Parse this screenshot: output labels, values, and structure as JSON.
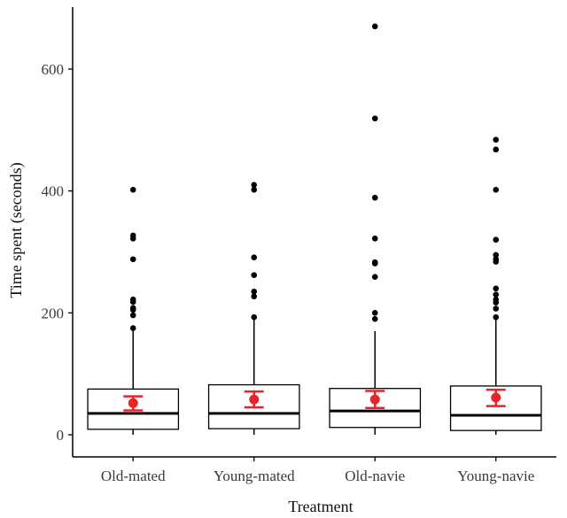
{
  "chart_data": {
    "type": "boxplot",
    "title": "",
    "xlabel": "Treatment",
    "ylabel": "Time spent (seconds)",
    "ylim": [
      -32,
      705
    ],
    "yticks": [
      0,
      200,
      400,
      600
    ],
    "grid": false,
    "legend": "none",
    "categories": [
      "Old-mated",
      "Young-mated",
      "Old-navie",
      "Young-navie"
    ],
    "boxes": [
      {
        "q1": 9,
        "median": 35,
        "q3": 75,
        "whisker_low": 0,
        "whisker_high": 175
      },
      {
        "q1": 10,
        "median": 35,
        "q3": 82,
        "whisker_low": 0,
        "whisker_high": 192
      },
      {
        "q1": 12,
        "median": 39,
        "q3": 76,
        "whisker_low": 0,
        "whisker_high": 170
      },
      {
        "q1": 7,
        "median": 32,
        "q3": 80,
        "whisker_low": 0,
        "whisker_high": 192
      }
    ],
    "outliers": [
      [
        402,
        327,
        322,
        288,
        222,
        218,
        208,
        205,
        196,
        175
      ],
      [
        410,
        402,
        291,
        262,
        235,
        227,
        193
      ],
      [
        670,
        519,
        389,
        322,
        283,
        281,
        259,
        200,
        190
      ],
      [
        484,
        468,
        402,
        320,
        295,
        288,
        284,
        240,
        230,
        222,
        217,
        207,
        193
      ]
    ],
    "means": [
      {
        "mean": 52,
        "ci_low": 40,
        "ci_high": 63
      },
      {
        "mean": 58,
        "ci_low": 45,
        "ci_high": 71
      },
      {
        "mean": 58,
        "ci_low": 44,
        "ci_high": 72
      },
      {
        "mean": 61,
        "ci_low": 47,
        "ci_high": 74
      }
    ],
    "colors": {
      "box": "#000000",
      "outlier": "#000000",
      "mean": "#e8232a",
      "axis": "#000000",
      "tick_label": "#3a3a3a"
    }
  }
}
